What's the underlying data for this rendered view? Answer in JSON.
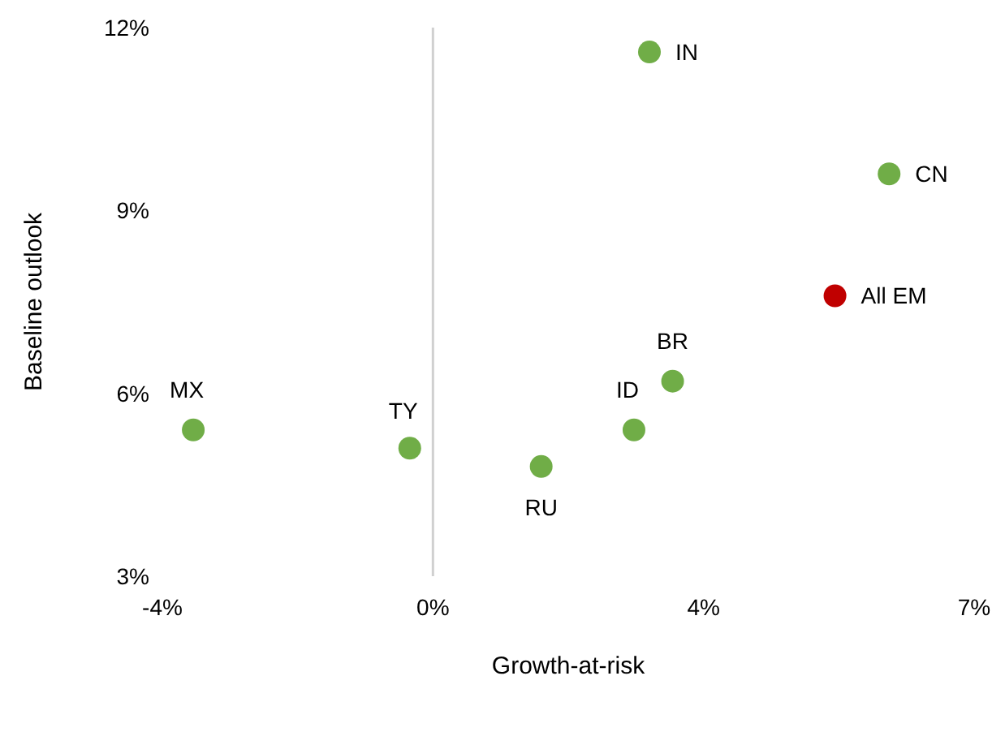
{
  "chart_data": {
    "type": "scatter",
    "xlabel": "Growth-at-risk",
    "ylabel": "Baseline outlook",
    "x": [
      2.8,
      5.9,
      5.2,
      3.1,
      2.6,
      1.4,
      -0.3,
      -3.1
    ],
    "values": [
      11.6,
      9.6,
      7.6,
      6.2,
      5.4,
      4.8,
      5.1,
      5.4
    ],
    "colors": [
      "#70ad47",
      "#70ad47",
      "#c00000",
      "#70ad47",
      "#70ad47",
      "#70ad47",
      "#70ad47",
      "#70ad47"
    ],
    "annotations": [
      {
        "text": "IN",
        "x": 2.8,
        "y": 11.6
      },
      {
        "text": "CN",
        "x": 5.9,
        "y": 9.6
      },
      {
        "text": "All EM",
        "x": 5.2,
        "y": 7.6
      },
      {
        "text": "BR",
        "x": 3.1,
        "y": 6.2
      },
      {
        "text": "ID",
        "x": 2.6,
        "y": 5.4
      },
      {
        "text": "RU",
        "x": 1.4,
        "y": 4.8
      },
      {
        "text": "TY",
        "x": -0.3,
        "y": 5.1
      },
      {
        "text": "MX",
        "x": -3.1,
        "y": 5.4
      }
    ],
    "xlim": [
      -3.5,
      7
    ],
    "xticks": [
      {
        "value": -3.5,
        "label": "-4%"
      },
      {
        "value": 0,
        "label": "0%"
      },
      {
        "value": 3.5,
        "label": "4%"
      },
      {
        "value": 7,
        "label": "7%"
      }
    ],
    "ylim": [
      3,
      12
    ],
    "yticks": [
      {
        "value": 3,
        "label": "3%"
      },
      {
        "value": 6,
        "label": "6%"
      },
      {
        "value": 9,
        "label": "9%"
      },
      {
        "value": 12,
        "label": "12%"
      }
    ],
    "ref_lines": [
      {
        "axis": "x",
        "value": 0,
        "color": "#d0d0d0"
      }
    ],
    "grid": false,
    "legend": false,
    "marker": "circle"
  }
}
